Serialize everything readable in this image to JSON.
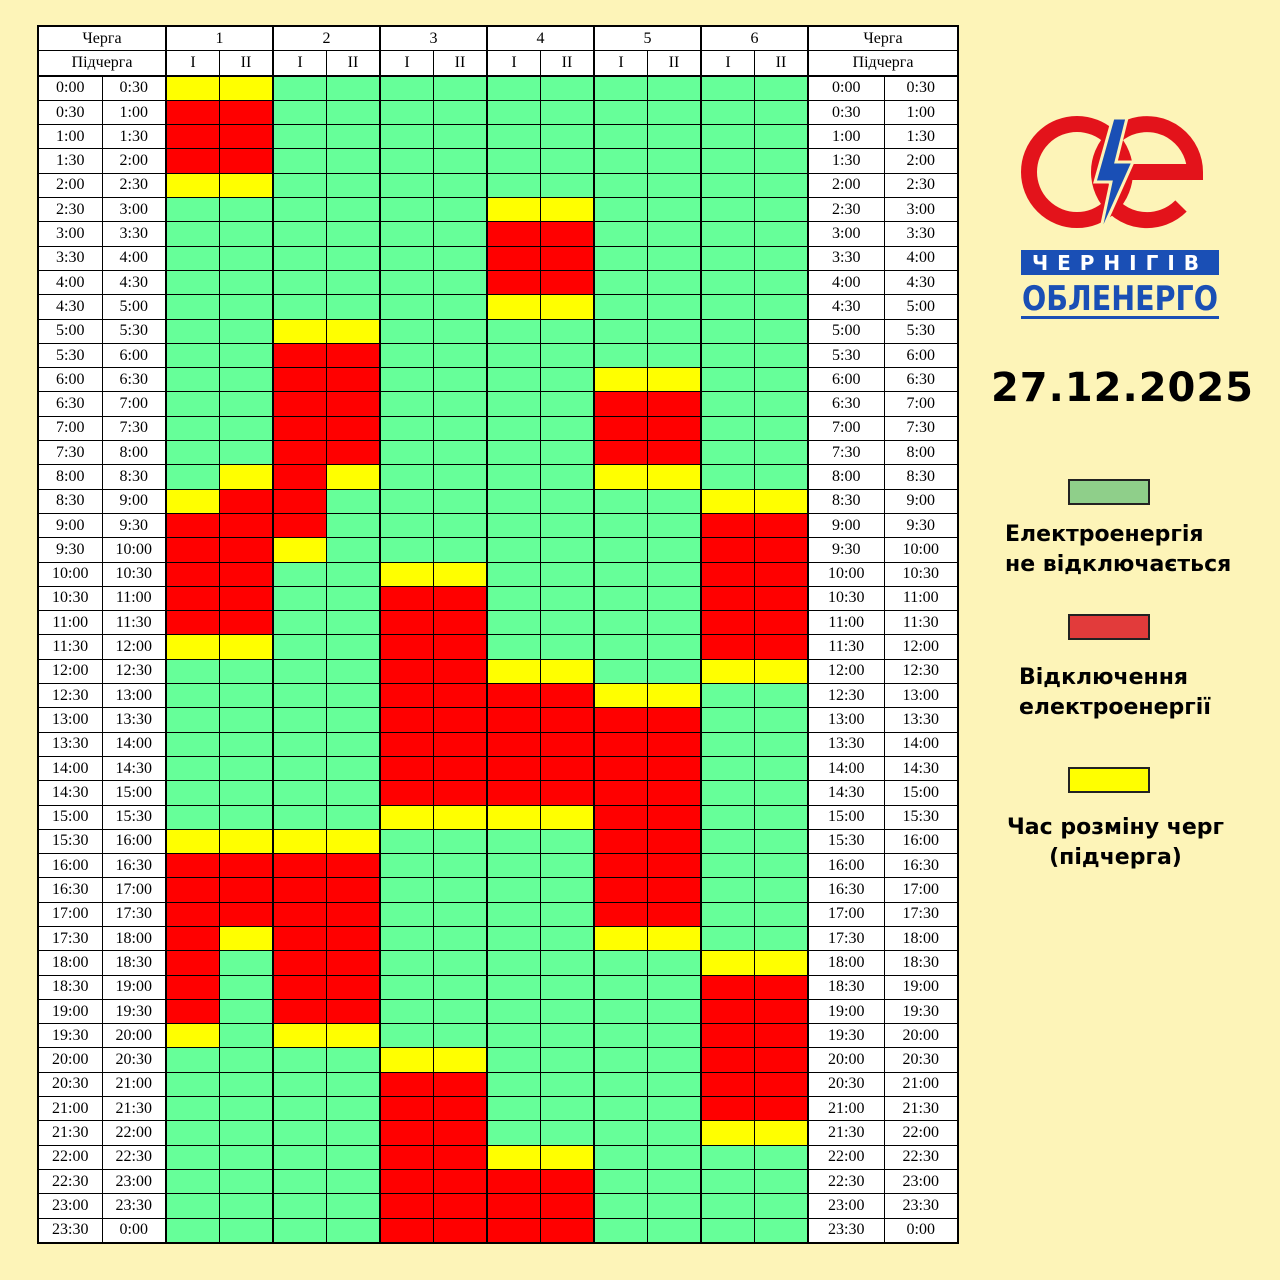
{
  "header": {
    "queue_label": "Черга",
    "subqueue_label": "Підчерга",
    "queues": [
      "1",
      "2",
      "3",
      "4",
      "5",
      "6"
    ],
    "subqueues": [
      "I",
      "II"
    ]
  },
  "times": [
    [
      "0:00",
      "0:30"
    ],
    [
      "0:30",
      "1:00"
    ],
    [
      "1:00",
      "1:30"
    ],
    [
      "1:30",
      "2:00"
    ],
    [
      "2:00",
      "2:30"
    ],
    [
      "2:30",
      "3:00"
    ],
    [
      "3:00",
      "3:30"
    ],
    [
      "3:30",
      "4:00"
    ],
    [
      "4:00",
      "4:30"
    ],
    [
      "4:30",
      "5:00"
    ],
    [
      "5:00",
      "5:30"
    ],
    [
      "5:30",
      "6:00"
    ],
    [
      "6:00",
      "6:30"
    ],
    [
      "6:30",
      "7:00"
    ],
    [
      "7:00",
      "7:30"
    ],
    [
      "7:30",
      "8:00"
    ],
    [
      "8:00",
      "8:30"
    ],
    [
      "8:30",
      "9:00"
    ],
    [
      "9:00",
      "9:30"
    ],
    [
      "9:30",
      "10:00"
    ],
    [
      "10:00",
      "10:30"
    ],
    [
      "10:30",
      "11:00"
    ],
    [
      "11:00",
      "11:30"
    ],
    [
      "11:30",
      "12:00"
    ],
    [
      "12:00",
      "12:30"
    ],
    [
      "12:30",
      "13:00"
    ],
    [
      "13:00",
      "13:30"
    ],
    [
      "13:30",
      "14:00"
    ],
    [
      "14:00",
      "14:30"
    ],
    [
      "14:30",
      "15:00"
    ],
    [
      "15:00",
      "15:30"
    ],
    [
      "15:30",
      "16:00"
    ],
    [
      "16:00",
      "16:30"
    ],
    [
      "16:30",
      "17:00"
    ],
    [
      "17:00",
      "17:30"
    ],
    [
      "17:30",
      "18:00"
    ],
    [
      "18:00",
      "18:30"
    ],
    [
      "18:30",
      "19:00"
    ],
    [
      "19:00",
      "19:30"
    ],
    [
      "19:30",
      "20:00"
    ],
    [
      "20:00",
      "20:30"
    ],
    [
      "20:30",
      "21:00"
    ],
    [
      "21:00",
      "21:30"
    ],
    [
      "21:30",
      "22:00"
    ],
    [
      "22:00",
      "22:30"
    ],
    [
      "22:30",
      "23:00"
    ],
    [
      "23:00",
      "23:30"
    ],
    [
      "23:30",
      "0:00"
    ]
  ],
  "schedule": [
    "YYGGGGGGGGGG",
    "RRGGGGGGGGGG",
    "RRGGGGGGGGGG",
    "RRGGGGGGGGGG",
    "YYGGGGGGGGGG",
    "GGGGGGYYGGGG",
    "GGGGGGRRGGGG",
    "GGGGGGRRGGGG",
    "GGGGGGRRGGGG",
    "GGGGGGYYGGGG",
    "GGYYGGGGGGGG",
    "GGRRGGGGGGGG",
    "GGRRGGGGYYGG",
    "GGRRGGGGRRGG",
    "GGRRGGGGRRGG",
    "GGRRGGGGRRGG",
    "GYRYGGGGYYGG",
    "YRRGGGGGGGYY",
    "RRRGGGGGGGRR",
    "RRYGGGGGGGRR",
    "RRGGYYGGGGRR",
    "RRGGRRGGGGRR",
    "RRGGRRGGGGRR",
    "YYGGRRGGGGRR",
    "GGGGRRYYGGYY",
    "GGGGRRRRYYGG",
    "GGGGRRRRRRGG",
    "GGGGRRRRRRGG",
    "GGGGRRRRRRGG",
    "GGGGRRRRRRGG",
    "GGGGYYYYRRGG",
    "YYYYGGGGRRGG",
    "RRRRGGGGRRGG",
    "RRRRGGGGRRGG",
    "RRRRGGGGRRGG",
    "RYRRGGGGYYGG",
    "RGRRGGGGGGYY",
    "RGRRGGGGGGRR",
    "RGRRGGGGGGRR",
    "YGYYGGGGGGRR",
    "GGGGYYGGGGRR",
    "GGGGRRGGGGRR",
    "GGGGRRGGGGRR",
    "GGGGRRGGGGYY",
    "GGGGRRYYGGGG",
    "GGGGRRRRGGGG",
    "GGGGRRRRGGGG",
    "GGGGRRRRGGGG"
  ],
  "logo": {
    "line1": "ЧЕРНІГІВ",
    "line2": "ОБЛЕНЕРГО",
    "colors": {
      "red": "#e3131b",
      "blue": "#1a4fb5"
    }
  },
  "date": "27.12.2025",
  "legend": {
    "green": {
      "line1": "Електроенергія",
      "line2": "не відключається",
      "color": "#8fcf8a"
    },
    "red": {
      "line1": "Відключення",
      "line2": "електроенергії",
      "color": "#e23b3b"
    },
    "yellow": {
      "line1": "Час розміну черг",
      "line2": "(підчерга)",
      "color": "#ffff00"
    }
  },
  "colors": {
    "G": "#66ff99",
    "R": "#ff0000",
    "Y": "#ffff00"
  }
}
